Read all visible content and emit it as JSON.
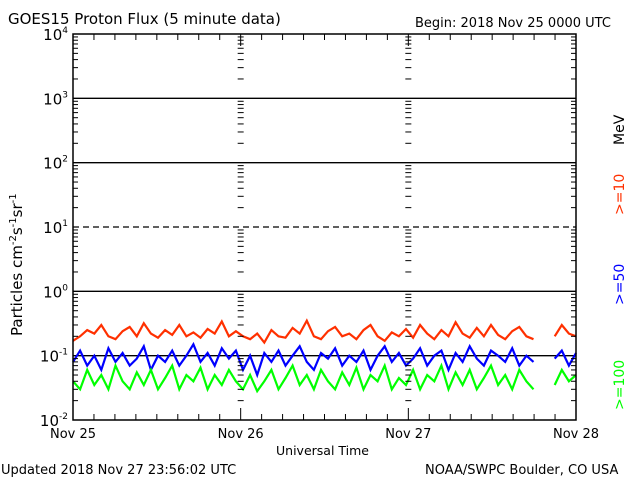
{
  "chart_data": {
    "type": "line",
    "title": "GOES15 Proton Flux (5 minute data)",
    "begin_label": "Begin: 2018 Nov 25 0000 UTC",
    "xlabel": "Universal Time",
    "ylabel_main": "Particles cm",
    "ylabel_parts": [
      "-2",
      "s",
      "-1",
      "sr",
      "-1"
    ],
    "x_unit": "hours since 2018 Nov 25 0000 UTC",
    "xlim": [
      0,
      72
    ],
    "x_ticks": [
      {
        "label": "Nov 25",
        "hour": 0
      },
      {
        "label": "Nov 26",
        "hour": 24
      },
      {
        "label": "Nov 27",
        "hour": 48
      },
      {
        "label": "Nov 28",
        "hour": 72
      }
    ],
    "y_scale": "log",
    "ylim": [
      0.01,
      10000
    ],
    "y_ticks": [
      {
        "base": "10",
        "exp": "4",
        "value": 10000
      },
      {
        "base": "10",
        "exp": "3",
        "value": 1000
      },
      {
        "base": "10",
        "exp": "2",
        "value": 100
      },
      {
        "base": "10",
        "exp": "1",
        "value": 10
      },
      {
        "base": "10",
        "exp": "0",
        "value": 1
      },
      {
        "base": "10",
        "exp": "-1",
        "value": 0.1
      },
      {
        "base": "10",
        "exp": "-2",
        "value": 0.01
      }
    ],
    "reference_lines": [
      {
        "value": 1000,
        "style": "solid"
      },
      {
        "value": 100,
        "style": "solid"
      },
      {
        "value": 10,
        "style": "dashed"
      },
      {
        "value": 1,
        "style": "solid"
      },
      {
        "value": 0.1,
        "style": "solid"
      }
    ],
    "unit_label": "MeV",
    "legend_placement": "right (rotated)",
    "series": [
      {
        "name": ">=10",
        "color": "#ff3000",
        "values": [
          0.17,
          0.2,
          0.25,
          0.22,
          0.3,
          0.2,
          0.18,
          0.24,
          0.28,
          0.2,
          0.32,
          0.22,
          0.19,
          0.25,
          0.21,
          0.3,
          0.2,
          0.23,
          0.19,
          0.26,
          0.22,
          0.34,
          0.2,
          0.24,
          0.2,
          0.18,
          0.22,
          0.16,
          0.25,
          0.2,
          0.19,
          0.27,
          0.22,
          0.35,
          0.2,
          0.18,
          0.24,
          0.28,
          0.2,
          0.22,
          0.18,
          0.25,
          0.3,
          0.2,
          0.17,
          0.23,
          0.2,
          0.26,
          0.19,
          0.3,
          0.22,
          0.18,
          0.25,
          0.2,
          0.33,
          0.22,
          0.19,
          0.27,
          0.2,
          0.3,
          0.21,
          0.18,
          0.24,
          0.28,
          0.2,
          0.18,
          null,
          null,
          0.2,
          0.3,
          0.22,
          0.2
        ]
      },
      {
        "name": ">=50",
        "color": "#0000ff",
        "values": [
          0.08,
          0.12,
          0.07,
          0.1,
          0.06,
          0.13,
          0.08,
          0.11,
          0.07,
          0.09,
          0.14,
          0.06,
          0.1,
          0.08,
          0.12,
          0.07,
          0.1,
          0.15,
          0.08,
          0.11,
          0.07,
          0.13,
          0.09,
          0.12,
          0.06,
          0.1,
          0.05,
          0.11,
          0.08,
          0.12,
          0.07,
          0.1,
          0.14,
          0.08,
          0.06,
          0.11,
          0.09,
          0.13,
          0.07,
          0.1,
          0.08,
          0.12,
          0.06,
          0.1,
          0.14,
          0.08,
          0.11,
          0.07,
          0.09,
          0.13,
          0.07,
          0.1,
          0.12,
          0.06,
          0.11,
          0.08,
          0.14,
          0.09,
          0.07,
          0.12,
          0.1,
          0.08,
          0.13,
          0.07,
          0.1,
          0.08,
          null,
          null,
          0.09,
          0.12,
          0.07,
          0.11
        ]
      },
      {
        "name": ">=100",
        "color": "#00ff00",
        "values": [
          0.04,
          0.03,
          0.06,
          0.035,
          0.05,
          0.03,
          0.07,
          0.04,
          0.03,
          0.055,
          0.035,
          0.06,
          0.03,
          0.045,
          0.07,
          0.03,
          0.05,
          0.04,
          0.065,
          0.03,
          0.05,
          0.035,
          0.06,
          0.04,
          0.03,
          0.05,
          0.028,
          0.04,
          0.06,
          0.03,
          0.045,
          0.07,
          0.035,
          0.05,
          0.03,
          0.06,
          0.04,
          0.03,
          0.055,
          0.035,
          0.065,
          0.03,
          0.05,
          0.04,
          0.07,
          0.03,
          0.045,
          0.035,
          0.06,
          0.03,
          0.05,
          0.04,
          0.07,
          0.03,
          0.055,
          0.035,
          0.06,
          0.03,
          0.045,
          0.07,
          0.035,
          0.05,
          0.03,
          0.06,
          0.04,
          0.03,
          null,
          null,
          0.035,
          0.06,
          0.04,
          0.05
        ]
      }
    ]
  },
  "footer": {
    "updated": "Updated 2018 Nov 27 23:56:02 UTC",
    "credit": "NOAA/SWPC Boulder, CO USA"
  }
}
